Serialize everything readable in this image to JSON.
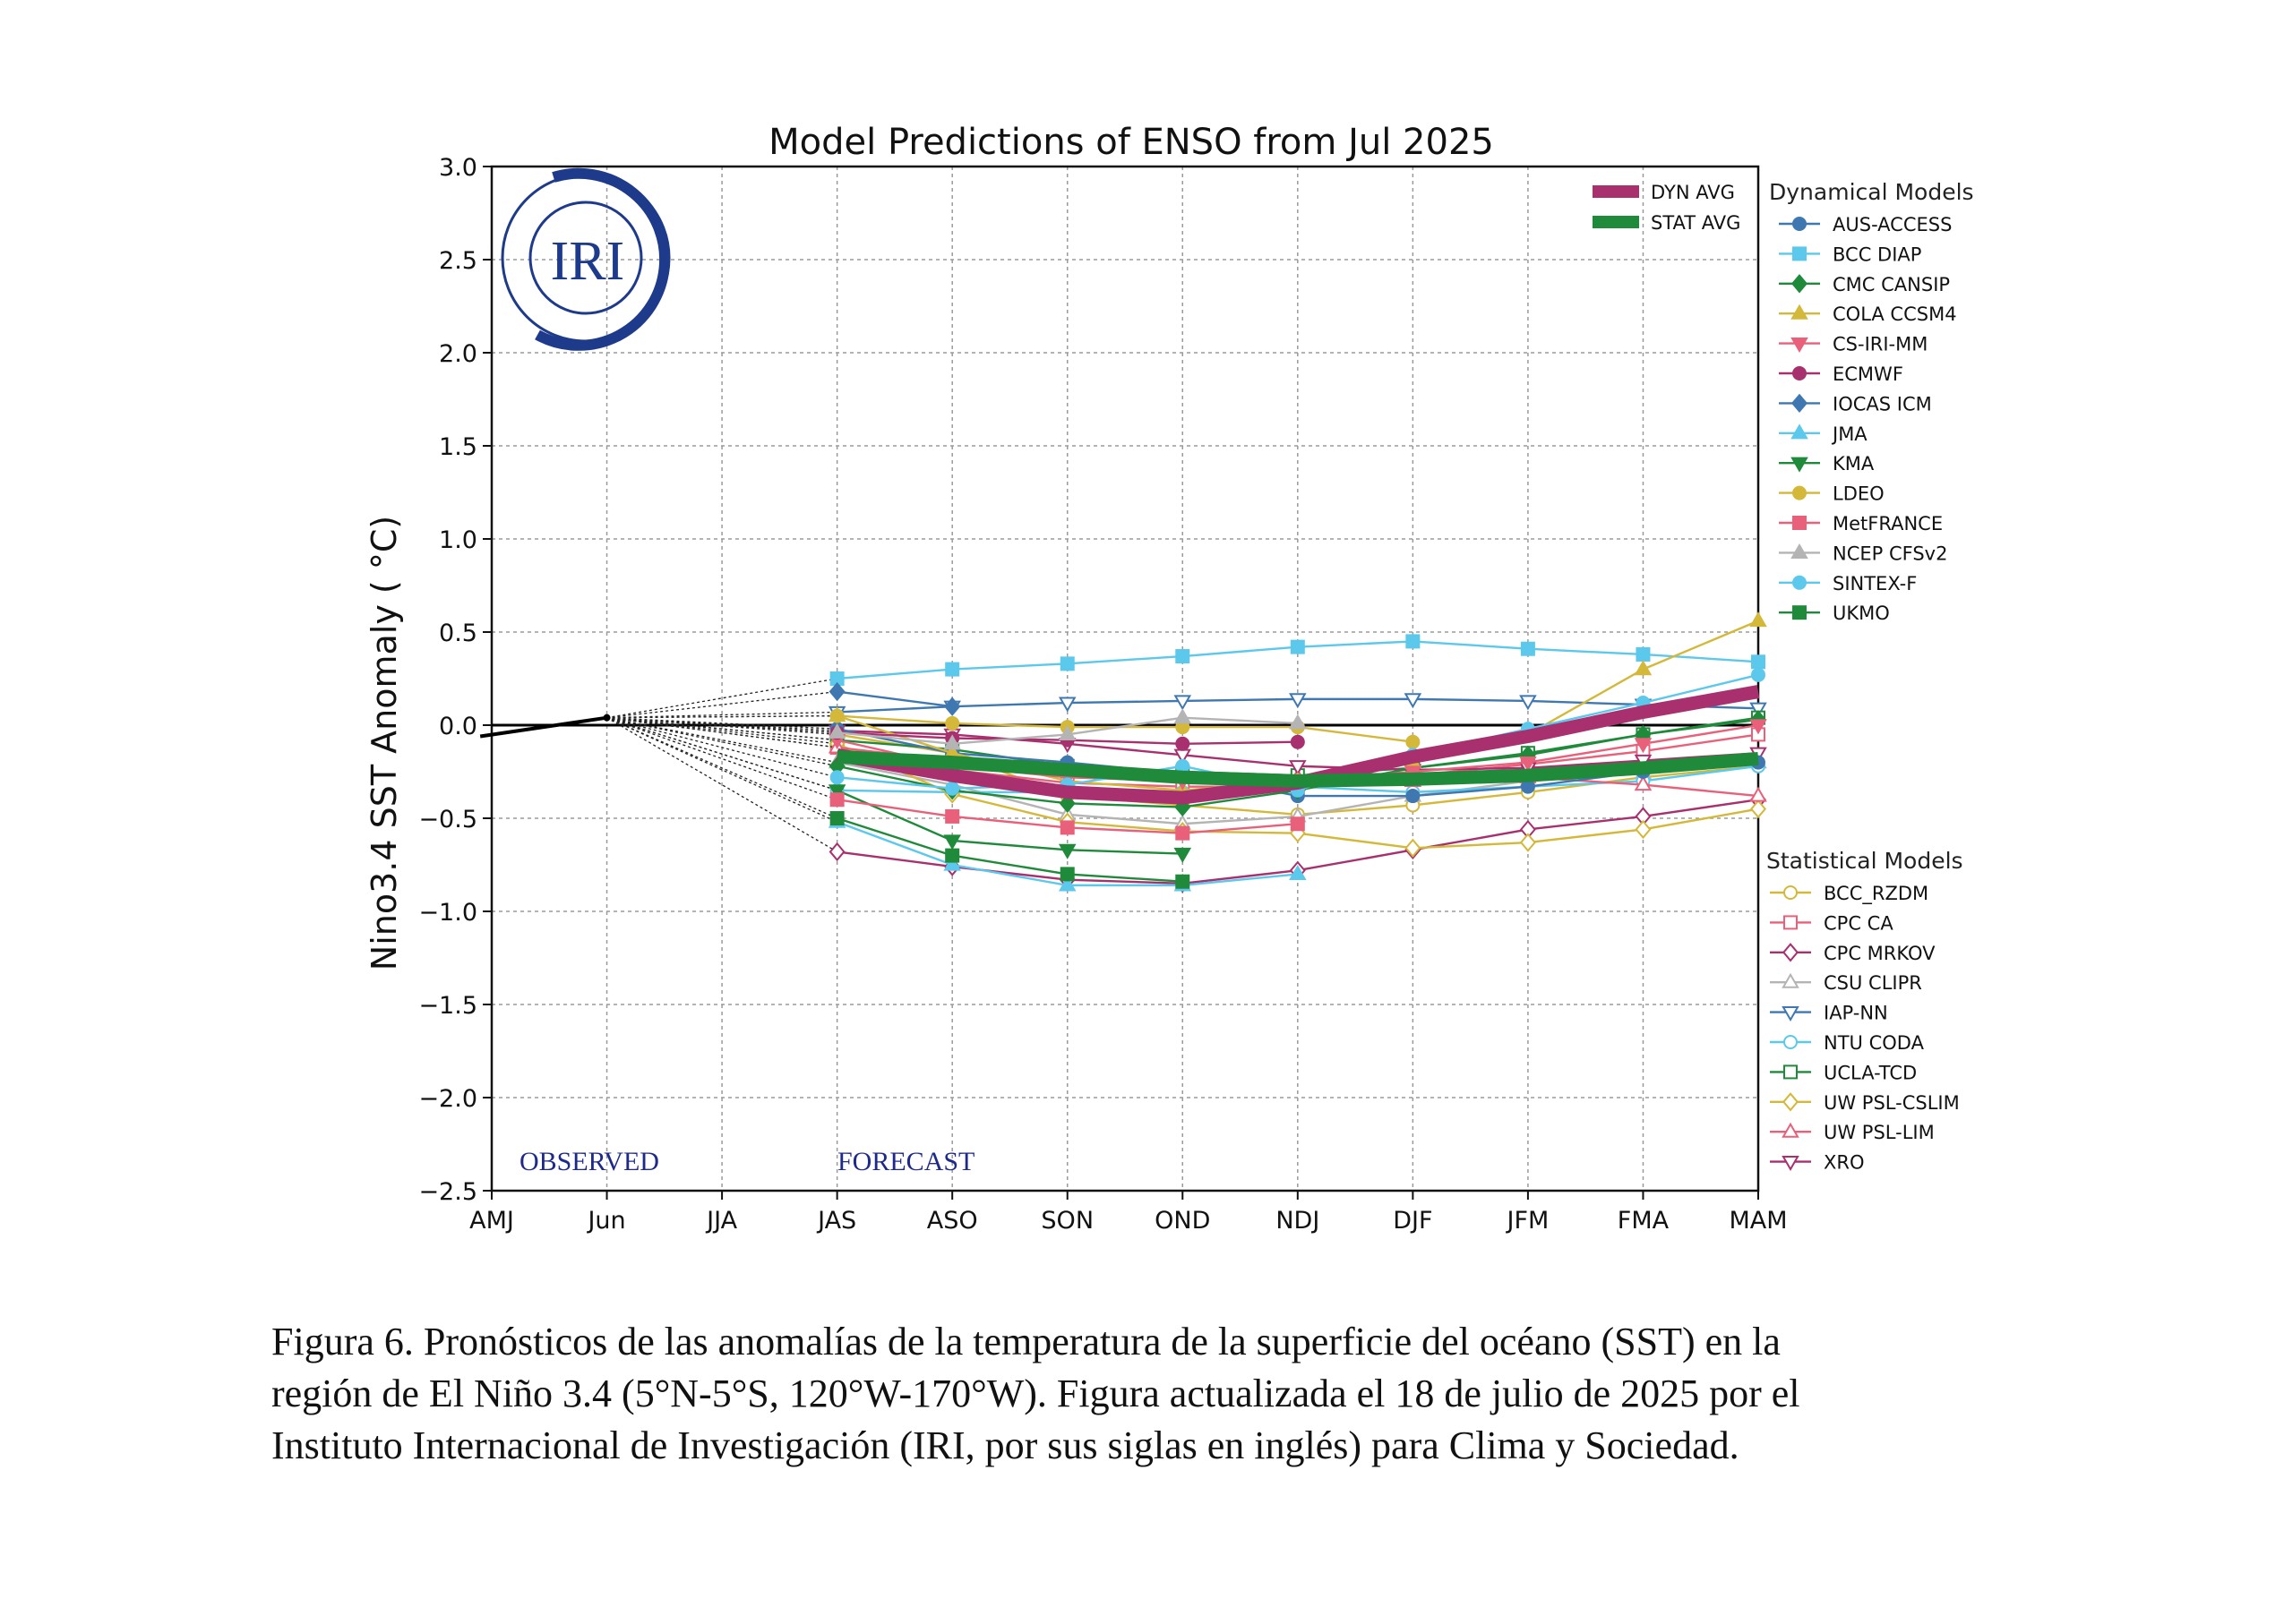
{
  "chart_data": {
    "type": "line",
    "title": "Model Predictions of ENSO from Jul 2025",
    "ylabel": "Nino3.4 SST Anomaly ( °C)",
    "xlabel": "",
    "ylim": [
      -2.5,
      3.0
    ],
    "yticks": [
      "3.0",
      "2.5",
      "2.0",
      "1.5",
      "1.0",
      "0.5",
      "0.0",
      "−0.5",
      "−1.0",
      "−1.5",
      "−2.0",
      "−2.5"
    ],
    "yticks_values": [
      3.0,
      2.5,
      2.0,
      1.5,
      1.0,
      0.5,
      0.0,
      -0.5,
      -1.0,
      -1.5,
      -2.0,
      -2.5
    ],
    "categories": [
      "AMJ",
      "Jun",
      "JJA",
      "JAS",
      "ASO",
      "SON",
      "OND",
      "NDJ",
      "DJF",
      "JFM",
      "FMA",
      "MAM"
    ],
    "grid": true,
    "logo_text": "IRI",
    "observed_label": "OBSERVED",
    "forecast_label": "FORECAST",
    "observed": {
      "x": [
        -0.1,
        1
      ],
      "values": [
        -0.06,
        0.04
      ]
    },
    "averages": [
      {
        "name": "DYN AVG",
        "color": "#a8306f",
        "values": [
          null,
          null,
          null,
          -0.16,
          -0.27,
          -0.36,
          -0.39,
          -0.31,
          -0.17,
          -0.06,
          0.07,
          0.18
        ]
      },
      {
        "name": "STAT AVG",
        "color": "#1e8a3a",
        "values": [
          null,
          null,
          null,
          -0.17,
          -0.2,
          -0.24,
          -0.28,
          -0.3,
          -0.29,
          -0.27,
          -0.23,
          -0.18
        ]
      }
    ],
    "dynamical_title": "Dynamical Models",
    "dynamical": [
      {
        "name": "AUS-ACCESS",
        "color": "#3f78b0",
        "marker": "circle",
        "fill": true,
        "values": [
          null,
          null,
          null,
          -0.02,
          -0.15,
          -0.2,
          -0.26,
          -0.38,
          -0.38,
          -0.33,
          -0.25,
          -0.2
        ]
      },
      {
        "name": "BCC DIAP",
        "color": "#5bc8ec",
        "marker": "square",
        "fill": true,
        "values": [
          null,
          null,
          null,
          0.25,
          0.3,
          0.33,
          0.37,
          0.42,
          0.45,
          0.41,
          0.38,
          0.34
        ]
      },
      {
        "name": "CMC CANSIP",
        "color": "#1e8a3a",
        "marker": "diamond",
        "fill": true,
        "values": [
          null,
          null,
          null,
          -0.22,
          -0.35,
          -0.42,
          -0.44,
          -0.35,
          -0.23,
          -0.16,
          -0.05,
          0.03
        ]
      },
      {
        "name": "COLA CCSM4",
        "color": "#d4b83a",
        "marker": "triangle",
        "fill": true,
        "values": [
          null,
          null,
          null,
          0.05,
          -0.15,
          -0.3,
          -0.35,
          -0.3,
          -0.2,
          -0.05,
          0.3,
          0.56
        ]
      },
      {
        "name": "CS-IRI-MM",
        "color": "#e8607a",
        "marker": "tridown",
        "fill": true,
        "values": [
          null,
          null,
          null,
          -0.08,
          -0.22,
          -0.28,
          -0.3,
          -0.3,
          -0.25,
          -0.2,
          -0.1,
          0.0
        ]
      },
      {
        "name": "ECMWF",
        "color": "#a8306f",
        "marker": "circle",
        "fill": true,
        "values": [
          null,
          null,
          null,
          -0.04,
          -0.07,
          -0.08,
          -0.1,
          -0.09,
          null,
          null,
          null,
          null
        ]
      },
      {
        "name": "IOCAS ICM",
        "color": "#3f78b0",
        "marker": "diamond",
        "fill": true,
        "values": [
          null,
          null,
          null,
          0.18,
          0.1,
          null,
          null,
          null,
          null,
          null,
          null,
          null
        ]
      },
      {
        "name": "JMA",
        "color": "#5bc8ec",
        "marker": "triangle",
        "fill": true,
        "values": [
          null,
          null,
          null,
          -0.52,
          -0.75,
          -0.86,
          -0.86,
          -0.8,
          null,
          null,
          null,
          null
        ]
      },
      {
        "name": "KMA",
        "color": "#1e8a3a",
        "marker": "tridown",
        "fill": true,
        "values": [
          null,
          null,
          null,
          -0.35,
          -0.62,
          -0.67,
          -0.69,
          null,
          null,
          null,
          null,
          null
        ]
      },
      {
        "name": "LDEO",
        "color": "#d4b83a",
        "marker": "circle",
        "fill": true,
        "values": [
          null,
          null,
          null,
          0.05,
          0.01,
          -0.01,
          -0.01,
          -0.01,
          -0.09,
          null,
          null,
          null
        ]
      },
      {
        "name": "MetFRANCE",
        "color": "#e8607a",
        "marker": "square",
        "fill": true,
        "values": [
          null,
          null,
          null,
          -0.4,
          -0.49,
          -0.55,
          -0.58,
          -0.53,
          null,
          null,
          null,
          null
        ]
      },
      {
        "name": "NCEP CFSv2",
        "color": "#b4b4b4",
        "marker": "triangle",
        "fill": true,
        "values": [
          null,
          null,
          null,
          -0.04,
          -0.1,
          -0.05,
          0.04,
          0.01,
          null,
          null,
          null,
          null
        ]
      },
      {
        "name": "SINTEX-F",
        "color": "#5bc8ec",
        "marker": "circle",
        "fill": true,
        "values": [
          null,
          null,
          null,
          -0.28,
          -0.34,
          -0.32,
          -0.22,
          -0.35,
          -0.16,
          -0.02,
          0.12,
          0.27
        ]
      },
      {
        "name": "UKMO",
        "color": "#1e8a3a",
        "marker": "square",
        "fill": true,
        "values": [
          null,
          null,
          null,
          -0.5,
          -0.7,
          -0.8,
          -0.84,
          null,
          null,
          null,
          null,
          null
        ]
      }
    ],
    "statistical_title": "Statistical Models",
    "statistical": [
      {
        "name": "BCC_RZDM",
        "color": "#d4b83a",
        "marker": "circle",
        "fill": false,
        "values": [
          null,
          null,
          null,
          -0.05,
          -0.15,
          -0.38,
          -0.43,
          -0.48,
          -0.43,
          -0.36,
          -0.28,
          -0.22
        ]
      },
      {
        "name": "CPC CA",
        "color": "#e8607a",
        "marker": "square",
        "fill": false,
        "values": [
          null,
          null,
          null,
          -0.12,
          -0.24,
          -0.31,
          -0.33,
          -0.33,
          -0.27,
          -0.21,
          -0.14,
          -0.05
        ]
      },
      {
        "name": "CPC MRKOV",
        "color": "#a8306f",
        "marker": "diamond",
        "fill": false,
        "values": [
          null,
          null,
          null,
          -0.68,
          -0.76,
          -0.83,
          -0.85,
          -0.78,
          -0.67,
          -0.56,
          -0.49,
          -0.4
        ]
      },
      {
        "name": "CSU CLIPR",
        "color": "#b4b4b4",
        "marker": "triangle",
        "fill": false,
        "values": [
          null,
          null,
          null,
          -0.2,
          -0.32,
          -0.48,
          -0.53,
          -0.49,
          -0.38,
          -0.3,
          -0.26,
          -0.2
        ]
      },
      {
        "name": "IAP-NN",
        "color": "#3f78b0",
        "marker": "tridown",
        "fill": false,
        "values": [
          null,
          null,
          null,
          0.07,
          0.1,
          0.12,
          0.13,
          0.14,
          0.14,
          0.13,
          0.11,
          0.09
        ]
      },
      {
        "name": "NTU CODA",
        "color": "#5bc8ec",
        "marker": "circle",
        "fill": false,
        "values": [
          null,
          null,
          null,
          -0.35,
          -0.36,
          -0.36,
          -0.36,
          -0.33,
          -0.36,
          -0.33,
          -0.3,
          -0.22
        ]
      },
      {
        "name": "UCLA-TCD",
        "color": "#1e8a3a",
        "marker": "square",
        "fill": false,
        "values": [
          null,
          null,
          null,
          -0.08,
          -0.13,
          -0.22,
          -0.25,
          -0.27,
          -0.23,
          -0.15,
          -0.05,
          0.04
        ]
      },
      {
        "name": "UW PSL-CSLIM",
        "color": "#d4b83a",
        "marker": "diamond",
        "fill": false,
        "values": [
          null,
          null,
          null,
          -0.1,
          -0.37,
          -0.52,
          -0.57,
          -0.58,
          -0.66,
          -0.63,
          -0.56,
          -0.45
        ]
      },
      {
        "name": "UW PSL-LIM",
        "color": "#e8607a",
        "marker": "triangle",
        "fill": false,
        "values": [
          null,
          null,
          null,
          -0.12,
          -0.19,
          -0.24,
          -0.28,
          -0.28,
          -0.3,
          -0.28,
          -0.32,
          -0.38
        ]
      },
      {
        "name": "XRO",
        "color": "#a8306f",
        "marker": "tridown",
        "fill": false,
        "values": [
          null,
          null,
          null,
          -0.03,
          -0.05,
          -0.1,
          -0.16,
          -0.22,
          -0.24,
          -0.23,
          -0.19,
          -0.15
        ]
      }
    ]
  },
  "caption": {
    "line1": "Figura 6. Pronósticos de las anomalías de la temperatura de la superficie del océano (SST) en la",
    "line2": "región de El Niño 3.4 (5°N-5°S, 120°W-170°W). Figura actualizada el 18 de julio de 2025 por el",
    "line3": "Instituto Internacional de Investigación (IRI, por sus siglas en inglés) para Clima y Sociedad."
  }
}
